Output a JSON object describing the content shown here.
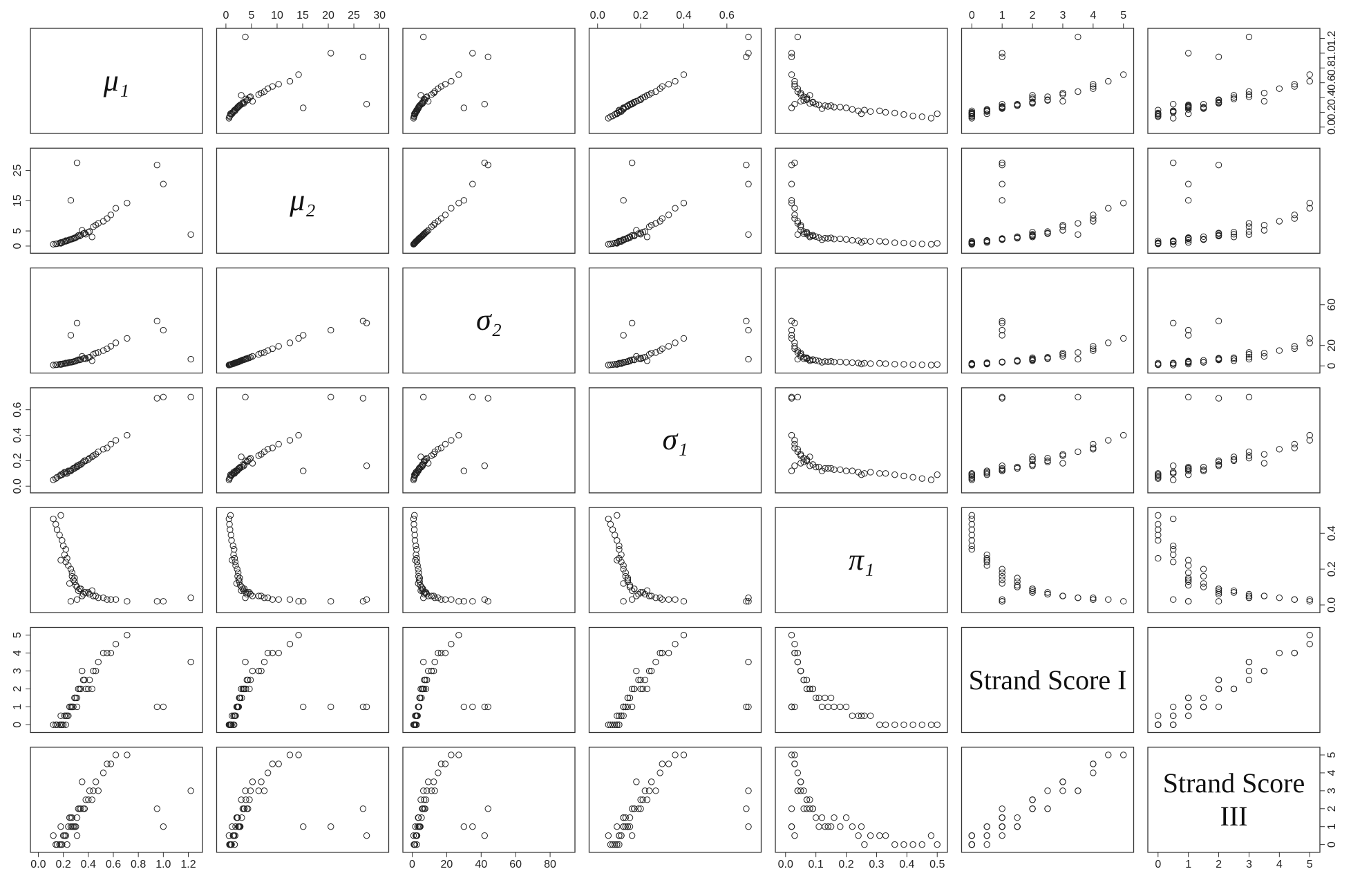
{
  "chart_data": {
    "type": "pairs",
    "variables": [
      {
        "name": "μ₁",
        "xlim": [
          -0.03,
          1.28
        ],
        "xticks": [
          {
            "value": 0,
            "label": "0.0"
          },
          {
            "value": 0.2,
            "label": "0.2"
          },
          {
            "value": 0.4,
            "label": "0.4"
          },
          {
            "value": 0.6,
            "label": "0.6"
          },
          {
            "value": 0.8,
            "label": "0.8"
          },
          {
            "value": 1,
            "label": "1.0"
          },
          {
            "value": 1.2,
            "label": "1.2"
          }
        ],
        "yticks": [
          {
            "value": 0,
            "label": "0.0"
          },
          {
            "value": 0.2,
            "label": "0.2"
          },
          {
            "value": 0.4,
            "label": "0.4"
          },
          {
            "value": 0.6,
            "label": "0.6"
          },
          {
            "value": 0.8,
            "label": "0.8"
          },
          {
            "value": 1,
            "label": "1.0"
          },
          {
            "value": 1.2,
            "label": "1.2"
          }
        ],
        "values": [
          0.25,
          0.32,
          0.18,
          0.41,
          0.22,
          0.29,
          0.35,
          0.15,
          0.48,
          0.27,
          0.38,
          0.21,
          0.55,
          0.31,
          0.19,
          0.26,
          0.44,
          0.33,
          0.12,
          0.62,
          0.28,
          0.36,
          0.24,
          0.17,
          0.52,
          0.3,
          0.4,
          0.23,
          0.2,
          0.71,
          0.34,
          0.27,
          0.46,
          0.14,
          0.58,
          0.22,
          0.37,
          0.29,
          0.95,
          1.0,
          0.31,
          0.43,
          0.26,
          0.18,
          1.22
        ]
      },
      {
        "name": "μ₂",
        "xlim": [
          -1,
          31
        ],
        "xticks": [
          0,
          5,
          10,
          15,
          20,
          25,
          30
        ],
        "yticks": [
          0,
          5,
          15,
          25
        ],
        "values": [
          2.1,
          3.5,
          1.2,
          4.8,
          1.6,
          2.7,
          5.2,
          0.8,
          7.5,
          2.4,
          3.9,
          1.5,
          9.1,
          3.1,
          1.1,
          2.2,
          6.4,
          3.3,
          0.6,
          12.5,
          2.5,
          4.1,
          1.9,
          1.0,
          8.2,
          2.8,
          4.6,
          1.7,
          1.4,
          14.2,
          3.6,
          2.3,
          6.9,
          0.7,
          10.3,
          1.8,
          4.3,
          2.6,
          26.8,
          20.5,
          27.5,
          3.0,
          15.1,
          0.9,
          3.8
        ]
      },
      {
        "name": "σ₂",
        "xlim": [
          -3,
          92
        ],
        "xticks": [
          0,
          20,
          40,
          60,
          80
        ],
        "yticks": [
          0,
          20,
          60
        ],
        "values": [
          3.5,
          6.0,
          1.8,
          8.5,
          2.5,
          4.4,
          9.3,
          1.2,
          13.1,
          3.8,
          6.9,
          2.2,
          16.8,
          5.4,
          1.6,
          3.5,
          11.2,
          5.8,
          0.8,
          22.6,
          4.0,
          7.0,
          3.1,
          1.5,
          15.0,
          4.7,
          8.0,
          2.6,
          2.1,
          27.0,
          6.2,
          3.7,
          12.5,
          1.0,
          19.2,
          2.8,
          7.5,
          4.3,
          44.0,
          35.0,
          42.0,
          5.0,
          30.0,
          1.3,
          6.5
        ]
      },
      {
        "name": "σ₁",
        "xlim": [
          -0.02,
          0.74
        ],
        "xticks": [
          {
            "value": 0,
            "label": "0.0"
          },
          {
            "value": 0.2,
            "label": "0.2"
          },
          {
            "value": 0.4,
            "label": "0.4"
          },
          {
            "value": 0.6,
            "label": "0.6"
          }
        ],
        "yticks": [
          {
            "value": 0,
            "label": "0.0"
          },
          {
            "value": 0.2,
            "label": "0.2"
          },
          {
            "value": 0.4,
            "label": "0.4"
          },
          {
            "value": 0.6,
            "label": "0.6"
          }
        ],
        "values": [
          0.12,
          0.16,
          0.09,
          0.22,
          0.1,
          0.14,
          0.18,
          0.07,
          0.27,
          0.13,
          0.2,
          0.11,
          0.3,
          0.15,
          0.09,
          0.12,
          0.24,
          0.17,
          0.05,
          0.36,
          0.14,
          0.19,
          0.12,
          0.08,
          0.29,
          0.15,
          0.21,
          0.1,
          0.1,
          0.4,
          0.17,
          0.13,
          0.25,
          0.06,
          0.33,
          0.11,
          0.2,
          0.14,
          0.69,
          0.7,
          0.16,
          0.23,
          0.12,
          0.09,
          0.7
        ]
      },
      {
        "name": "π₁",
        "xlim": [
          -0.02,
          0.52
        ],
        "xticks": [
          {
            "value": 0,
            "label": "0.0"
          },
          {
            "value": 0.1,
            "label": "0.1"
          },
          {
            "value": 0.2,
            "label": "0.2"
          },
          {
            "value": 0.3,
            "label": "0.3"
          },
          {
            "value": 0.4,
            "label": "0.4"
          },
          {
            "value": 0.5,
            "label": "0.5"
          }
        ],
        "yticks": [
          {
            "value": 0,
            "label": "0.0"
          },
          {
            "value": 0.2,
            "label": "0.2"
          },
          {
            "value": 0.4,
            "label": "0.4"
          }
        ],
        "values": [
          0.12,
          0.08,
          0.25,
          0.06,
          0.31,
          0.15,
          0.05,
          0.42,
          0.04,
          0.18,
          0.07,
          0.28,
          0.03,
          0.1,
          0.36,
          0.2,
          0.05,
          0.09,
          0.48,
          0.03,
          0.14,
          0.06,
          0.22,
          0.39,
          0.04,
          0.11,
          0.07,
          0.26,
          0.33,
          0.02,
          0.09,
          0.16,
          0.05,
          0.45,
          0.03,
          0.24,
          0.07,
          0.13,
          0.02,
          0.02,
          0.03,
          0.08,
          0.02,
          0.5,
          0.04
        ]
      },
      {
        "name": "Strand Score I",
        "xlim": [
          -0.2,
          5.2
        ],
        "xticks": [
          0,
          1,
          2,
          3,
          4,
          5
        ],
        "yticks": [
          0,
          1,
          2,
          3,
          4,
          5
        ],
        "values": [
          1,
          2,
          0.5,
          2.5,
          0,
          1.5,
          3,
          0,
          3.5,
          1,
          2,
          0.5,
          4,
          1.5,
          0,
          1,
          3,
          2,
          0,
          4.5,
          1,
          2.5,
          0.5,
          0,
          4,
          1.5,
          2,
          0.5,
          0,
          5,
          2,
          1,
          3,
          0,
          4,
          0.5,
          2.5,
          1.5,
          1,
          1,
          1,
          2,
          1,
          0,
          3.5
        ]
      },
      {
        "name": "Strand Score III",
        "xlim": [
          -0.2,
          5.2
        ],
        "xticks": [
          0,
          1,
          2,
          3,
          4,
          5
        ],
        "yticks": [
          0,
          1,
          2,
          3,
          4,
          5
        ],
        "values": [
          1.5,
          2,
          1,
          3,
          0.5,
          1,
          3.5,
          0,
          3,
          1,
          2.5,
          0.5,
          4.5,
          1.5,
          0,
          1.5,
          3,
          2,
          0.5,
          5,
          1,
          2,
          1,
          0,
          4,
          1,
          2.5,
          0,
          0.5,
          5,
          2,
          1.5,
          3.5,
          0,
          4.5,
          0.5,
          2,
          1,
          2,
          1,
          0.5,
          2.5,
          1,
          0,
          3
        ]
      }
    ]
  }
}
